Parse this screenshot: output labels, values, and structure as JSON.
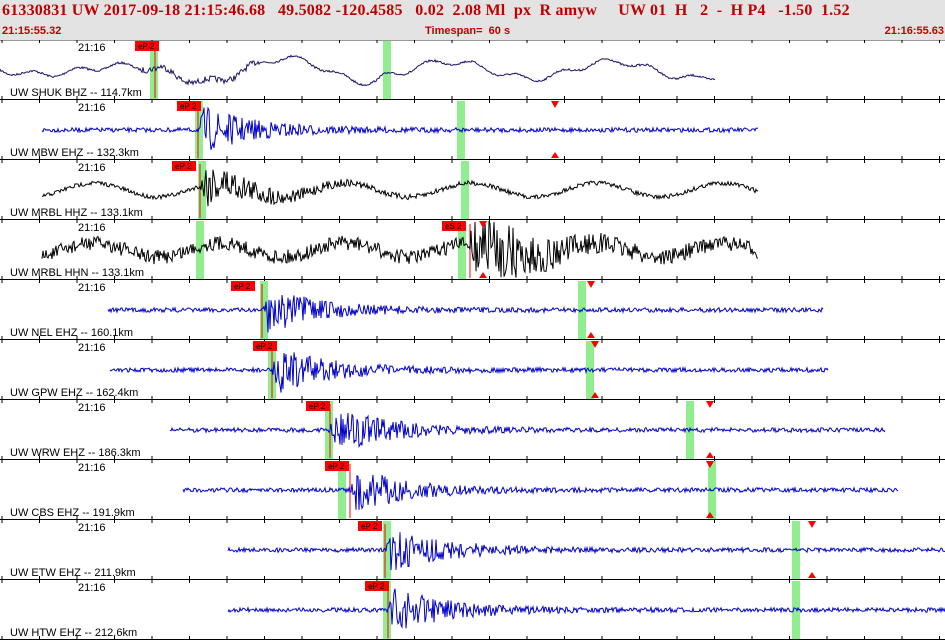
{
  "header": {
    "title": "61330831 UW 2017-09-18 21:15:46.68   49.5082 -120.4585   0.02  2.08 Ml  px  R amyw     UW 01  H   2  -  H P4   -1.50  1.52",
    "start_time": "21:15:55.32",
    "timespan": "Timespan=  60 s",
    "end_time": "21:16:55.63"
  },
  "colors": {
    "header_bg": "#e3e3e3",
    "header_text": "#c00000",
    "pick_flag": "#ff0000",
    "window_band": "#90ee90",
    "trace_blue": "#0000cc",
    "trace_navy": "#1a1464",
    "trace_black": "#000000"
  },
  "icons": {
    "pick_marker": "red-flag",
    "s_arrival_marker": "red-triangle"
  },
  "traces": [
    {
      "label": "UW SHUK BHZ -- 114.7km",
      "time": "21:16",
      "pick": "eP 2",
      "color": "navy",
      "signal": "shuk"
    },
    {
      "label": "UW MBW EHZ -- 132.3km",
      "time": "21:16",
      "pick": "eP 2",
      "color": "blue",
      "signal": "event"
    },
    {
      "label": "UW MRBL HHZ -- 133.1km",
      "time": "21:16",
      "pick": "eP 2",
      "color": "black",
      "signal": "event"
    },
    {
      "label": "UW MRBL HHN -- 133.1km",
      "time": "21:16",
      "pick": "eS 2",
      "color": "black",
      "signal": "event"
    },
    {
      "label": "UW NEL EHZ -- 160.1km",
      "time": "21:16",
      "pick": "eP 2",
      "color": "blue",
      "signal": "event"
    },
    {
      "label": "UW GPW EHZ -- 162.4km",
      "time": "21:16",
      "pick": "eP 2",
      "color": "blue",
      "signal": "event"
    },
    {
      "label": "UW WRW EHZ -- 186.3km",
      "time": "21:16",
      "pick": "eP 2",
      "color": "blue",
      "signal": "event"
    },
    {
      "label": "UW CBS EHZ -- 191.9km",
      "time": "21:16",
      "pick": "eP 2",
      "color": "blue",
      "signal": "event"
    },
    {
      "label": "UW ETW EHZ -- 211.9km",
      "time": "21:16",
      "pick": "eP 2",
      "color": "blue",
      "signal": "event"
    },
    {
      "label": "UW HTW EHZ -- 212.6km",
      "time": "21:16",
      "pick": "eP 2",
      "color": "blue",
      "signal": "event"
    }
  ]
}
